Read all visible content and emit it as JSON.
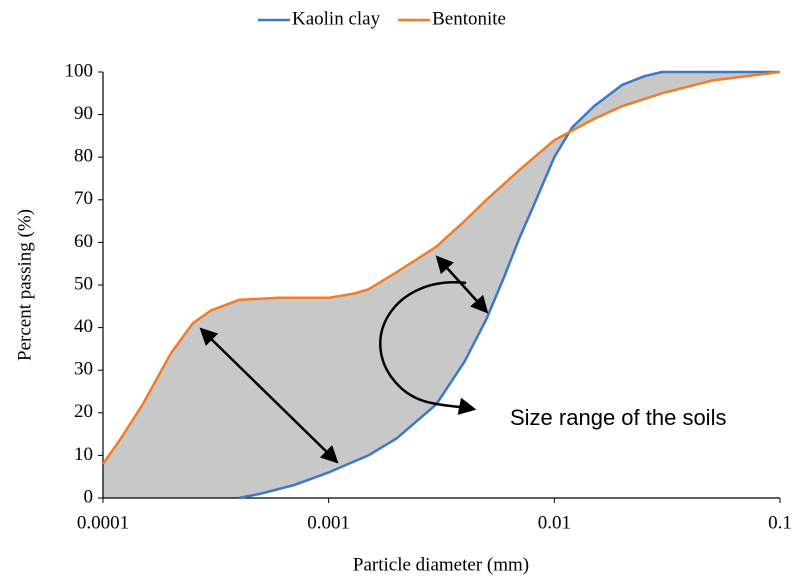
{
  "chart_data": {
    "type": "line",
    "xlabel": "Particle diameter (mm)",
    "ylabel": "Percent passing (%)",
    "xscale": "log",
    "xlim": [
      0.0001,
      0.1
    ],
    "xticks": [
      0.0001,
      0.001,
      0.01,
      0.1
    ],
    "ylim": [
      0,
      100
    ],
    "yticks": [
      0,
      10,
      20,
      30,
      40,
      50,
      60,
      70,
      80,
      90,
      100
    ],
    "fill_between": true,
    "fill_color": "#c8c8c8",
    "legend": "top",
    "annotation": "Size range of the soils",
    "series": [
      {
        "name": "Kaolin clay",
        "color": "#3a78c9",
        "x": [
          0.0004,
          0.0005,
          0.0007,
          0.001,
          0.0015,
          0.002,
          0.003,
          0.004,
          0.005,
          0.006,
          0.007,
          0.008,
          0.01,
          0.012,
          0.015,
          0.02,
          0.025,
          0.03,
          0.05,
          0.1
        ],
        "values": [
          0,
          1,
          3,
          6,
          10,
          14,
          22,
          32,
          42,
          52,
          61,
          68,
          80,
          87,
          92,
          97,
          99,
          100,
          100,
          100
        ]
      },
      {
        "name": "Bentonite",
        "color": "#f07d28",
        "x": [
          0.0001,
          0.00012,
          0.00015,
          0.0002,
          0.00025,
          0.0003,
          0.0004,
          0.0006,
          0.001,
          0.0013,
          0.0015,
          0.002,
          0.003,
          0.004,
          0.005,
          0.007,
          0.01,
          0.015,
          0.02,
          0.03,
          0.05,
          0.1
        ],
        "values": [
          8,
          14,
          22,
          34,
          41,
          44,
          46.5,
          47,
          47,
          48,
          49,
          53,
          59,
          65,
          70,
          77,
          84,
          89,
          92,
          95,
          98,
          100
        ]
      }
    ]
  }
}
